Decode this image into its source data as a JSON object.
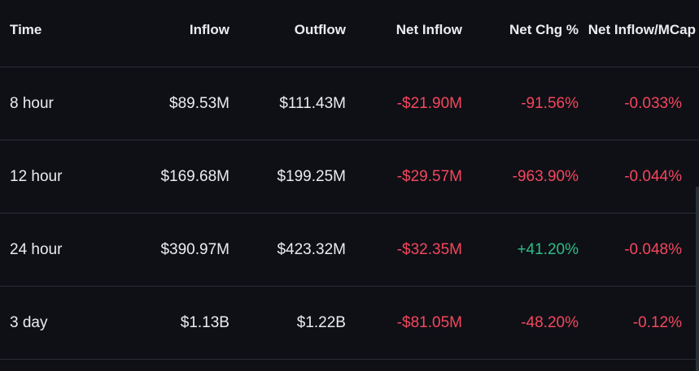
{
  "headers": {
    "time": "Time",
    "inflow": "Inflow",
    "outflow": "Outflow",
    "net_inflow": "Net Inflow",
    "net_chg": "Net Chg %",
    "net_inflow_mcap": "Net Inflow/MCap"
  },
  "colors": {
    "background": "#0e1016",
    "text": "#eaecef",
    "negative": "#f6465d",
    "positive": "#2ebd85",
    "divider": "#2b2f36"
  },
  "rows": [
    {
      "time": "8 hour",
      "inflow": "$89.53M",
      "outflow": "$111.43M",
      "net_inflow": "-$21.90M",
      "net_chg": "-91.56%",
      "net_inflow_mcap": "-0.033%"
    },
    {
      "time": "12 hour",
      "inflow": "$169.68M",
      "outflow": "$199.25M",
      "net_inflow": "-$29.57M",
      "net_chg": "-963.90%",
      "net_inflow_mcap": "-0.044%"
    },
    {
      "time": "24 hour",
      "inflow": "$390.97M",
      "outflow": "$423.32M",
      "net_inflow": "-$32.35M",
      "net_chg": "+41.20%",
      "net_inflow_mcap": "-0.048%"
    },
    {
      "time": "3 day",
      "inflow": "$1.13B",
      "outflow": "$1.22B",
      "net_inflow": "-$81.05M",
      "net_chg": "-48.20%",
      "net_inflow_mcap": "-0.12%"
    }
  ]
}
